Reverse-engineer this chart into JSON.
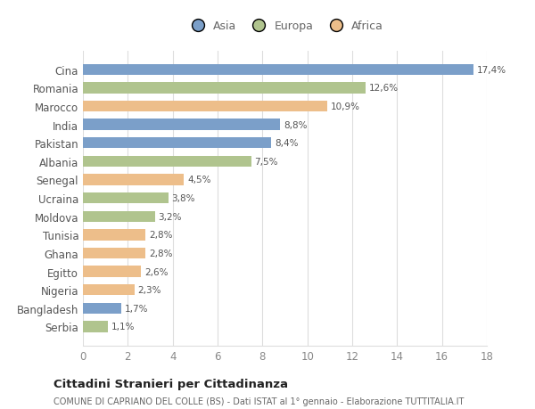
{
  "countries": [
    "Cina",
    "Romania",
    "Marocco",
    "India",
    "Pakistan",
    "Albania",
    "Senegal",
    "Ucraina",
    "Moldova",
    "Tunisia",
    "Ghana",
    "Egitto",
    "Nigeria",
    "Bangladesh",
    "Serbia"
  ],
  "values": [
    17.4,
    12.6,
    10.9,
    8.8,
    8.4,
    7.5,
    4.5,
    3.8,
    3.2,
    2.8,
    2.8,
    2.6,
    2.3,
    1.7,
    1.1
  ],
  "labels": [
    "17,4%",
    "12,6%",
    "10,9%",
    "8,8%",
    "8,4%",
    "7,5%",
    "4,5%",
    "3,8%",
    "3,2%",
    "2,8%",
    "2,8%",
    "2,6%",
    "2,3%",
    "1,7%",
    "1,1%"
  ],
  "continents": [
    "Asia",
    "Europa",
    "Africa",
    "Asia",
    "Asia",
    "Europa",
    "Africa",
    "Europa",
    "Europa",
    "Africa",
    "Africa",
    "Africa",
    "Africa",
    "Asia",
    "Europa"
  ],
  "colors": {
    "Asia": "#7b9fc9",
    "Europa": "#b0c48e",
    "Africa": "#edbe8a"
  },
  "legend_labels": [
    "Asia",
    "Europa",
    "Africa"
  ],
  "legend_colors": [
    "#7b9fc9",
    "#b0c48e",
    "#edbe8a"
  ],
  "xlim": [
    0,
    18
  ],
  "xticks": [
    0,
    2,
    4,
    6,
    8,
    10,
    12,
    14,
    16,
    18
  ],
  "title": "Cittadini Stranieri per Cittadinanza",
  "subtitle": "COMUNE DI CAPRIANO DEL COLLE (BS) - Dati ISTAT al 1° gennaio - Elaborazione TUTTITALIA.IT",
  "bg_color": "#ffffff",
  "bar_height": 0.6
}
